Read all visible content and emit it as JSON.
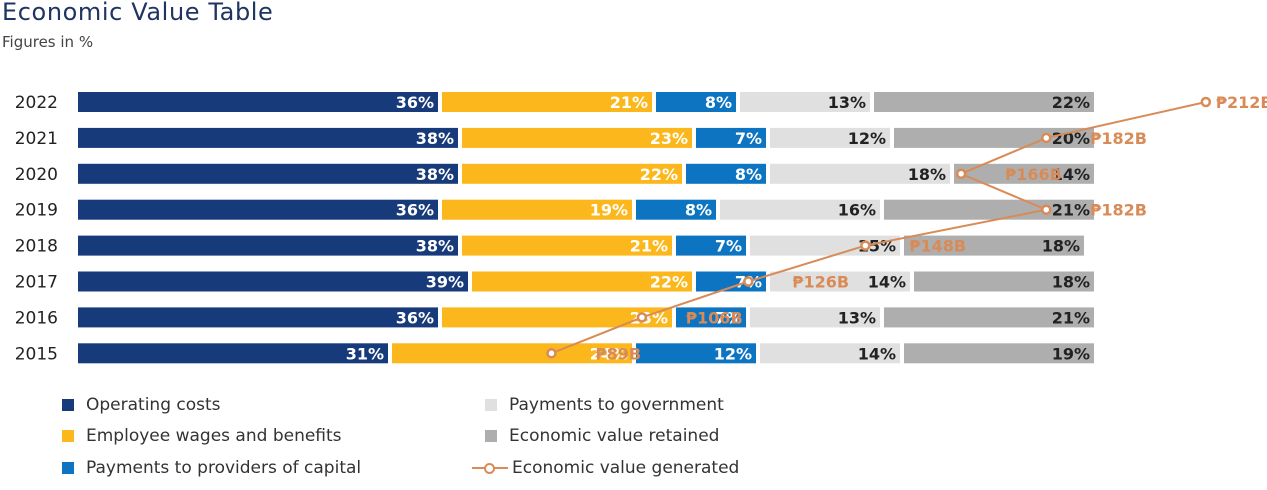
{
  "title": "Economic Value Table",
  "subtitle": "Figures in %",
  "colors": {
    "operating_costs": "#173a7a",
    "wages": "#fbb71b",
    "capital": "#0d74c2",
    "government": "#e0e0e0",
    "retained": "#aeaeae",
    "generated": "#d98b57",
    "text_dark": "#222222",
    "text_light": "#ffffff"
  },
  "chart_data": {
    "type": "bar",
    "stacked": true,
    "orientation": "horizontal",
    "categories": [
      "2022",
      "2021",
      "2020",
      "2019",
      "2018",
      "2017",
      "2016",
      "2015"
    ],
    "series": [
      {
        "name": "Operating costs",
        "values": [
          36,
          38,
          38,
          36,
          38,
          39,
          36,
          31
        ],
        "label_color": "light"
      },
      {
        "name": "Employee wages and benefits",
        "values": [
          21,
          23,
          22,
          19,
          21,
          22,
          23,
          24
        ],
        "label_color": "light"
      },
      {
        "name": "Payments to providers of capital",
        "values": [
          8,
          7,
          8,
          8,
          7,
          7,
          7,
          12
        ],
        "label_color": "light"
      },
      {
        "name": "Payments to government",
        "values": [
          13,
          12,
          18,
          16,
          15,
          14,
          13,
          14
        ],
        "label_color": "dark"
      },
      {
        "name": "Economic value retained",
        "values": [
          22,
          20,
          14,
          21,
          18,
          18,
          21,
          19
        ],
        "label_color": "dark"
      }
    ],
    "line_series": {
      "name": "Economic value generated",
      "values": [
        212,
        182,
        166,
        182,
        148,
        126,
        106,
        89
      ],
      "labels": [
        "₱212B",
        "₱182B",
        "₱166B",
        "₱182B",
        "₱148B",
        "₱126B",
        "₱106B",
        "₱89B"
      ]
    }
  },
  "legend": [
    {
      "label": "Operating costs",
      "key": "operating_costs",
      "kind": "square"
    },
    {
      "label": "Employee wages and benefits",
      "key": "wages",
      "kind": "square"
    },
    {
      "label": "Payments to providers of capital",
      "key": "capital",
      "kind": "square"
    },
    {
      "label": "Payments to government",
      "key": "government",
      "kind": "square"
    },
    {
      "label": "Economic value retained",
      "key": "retained",
      "kind": "square"
    },
    {
      "label": "Economic value generated",
      "key": "generated",
      "kind": "line"
    }
  ]
}
